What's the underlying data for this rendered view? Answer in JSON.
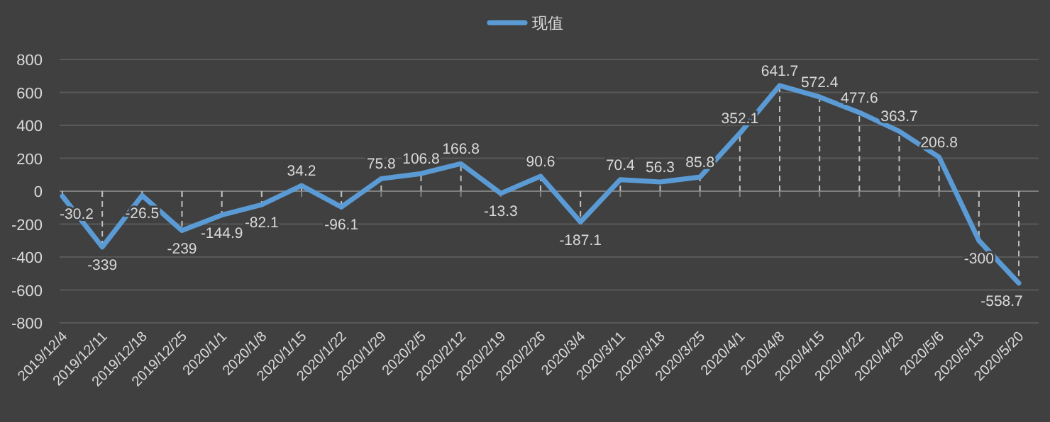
{
  "chart_data": {
    "type": "line",
    "categories": [
      "2019/12/4",
      "2019/12/11",
      "2019/12/18",
      "2019/12/25",
      "2020/1/1",
      "2020/1/8",
      "2020/1/15",
      "2020/1/22",
      "2020/1/29",
      "2020/2/5",
      "2020/2/12",
      "2020/2/19",
      "2020/2/26",
      "2020/3/4",
      "2020/3/11",
      "2020/3/18",
      "2020/3/25",
      "2020/4/1",
      "2020/4/8",
      "2020/4/15",
      "2020/4/22",
      "2020/4/29",
      "2020/5/6",
      "2020/5/13",
      "2020/5/20"
    ],
    "series": [
      {
        "name": "现值",
        "color": "#5b9bd5",
        "values": [
          -30.2,
          -339,
          -26.5,
          -239,
          -144.9,
          -82.1,
          34.2,
          -96.1,
          75.8,
          106.8,
          166.8,
          -13.3,
          90.6,
          -187.1,
          70.4,
          56.3,
          85.8,
          352.1,
          641.7,
          572.4,
          477.6,
          363.7,
          206.8,
          -300,
          -558.7
        ]
      }
    ],
    "ylim": [
      -800,
      800
    ],
    "yticks": [
      -800,
      -600,
      -400,
      -200,
      0,
      200,
      400,
      600,
      800
    ],
    "grid": "y",
    "legend": "top",
    "data_labels": true,
    "marker": "none",
    "line_style": "solid"
  }
}
